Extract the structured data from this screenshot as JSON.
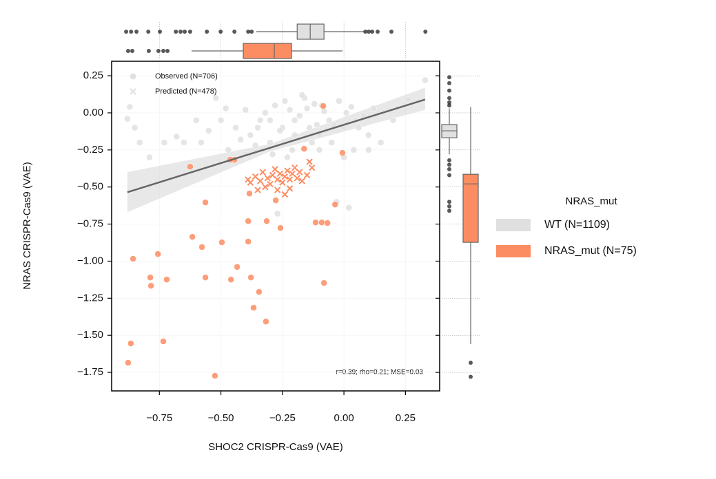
{
  "chart_data": {
    "type": "scatter",
    "xlabel": "SHOC2 CRISPR-Cas9 (VAE)",
    "ylabel": "NRAS CRISPR-Cas9 (VAE)",
    "xlim": [
      -0.944,
      0.389
    ],
    "ylim": [
      -1.875,
      0.348
    ],
    "xticks": [
      {
        "value": -0.75,
        "label": "−0.75"
      },
      {
        "value": -0.5,
        "label": "−0.50"
      },
      {
        "value": -0.25,
        "label": "−0.25"
      },
      {
        "value": 0,
        "label": "0.00"
      },
      0.25
    ],
    "yticks": [
      0.25,
      {
        "value": 0,
        "label": "0.00"
      },
      {
        "value": -0.25,
        "label": "−0.25"
      },
      {
        "value": -0.5,
        "label": "−0.50"
      },
      {
        "value": -0.75,
        "label": "−0.75"
      },
      {
        "value": -1,
        "label": "−1.00"
      },
      {
        "value": -1.25,
        "label": "−1.25"
      },
      {
        "value": -1.5,
        "label": "−1.50"
      },
      {
        "value": -1.75,
        "label": "−1.75"
      }
    ],
    "grid": true,
    "legend_title": "NRAS_mut",
    "hue_legend": [
      {
        "name": "WT (N=1109)",
        "color": "#e0e0e0"
      },
      {
        "name": "NRAS_mut (N=75)",
        "color": "#fc8d62"
      }
    ],
    "style_legend": [
      {
        "name": "Observed (N=706)",
        "marker": "circle"
      },
      {
        "name": "Predicted (N=478)",
        "marker": "x"
      }
    ],
    "annotation": "r=0.39; rho=0.21; MSE=0.03",
    "series": [
      {
        "hue": 0,
        "style": 0,
        "x": [
          -0.88,
          -0.87,
          -0.85,
          -0.83,
          -0.79,
          -0.73,
          -0.68,
          -0.65,
          -0.58,
          -0.55,
          -0.5,
          -0.48,
          -0.44,
          -0.4,
          -0.35,
          -0.3,
          -0.25,
          -0.2,
          -0.15,
          -0.1,
          -0.05,
          0.0,
          0.05,
          0.1,
          0.15,
          0.2,
          0.33,
          0.26,
          0.02,
          -0.03,
          -0.27,
          -0.4,
          -0.47,
          -0.1,
          -0.32,
          -0.28,
          -0.22,
          -0.18,
          -0.12,
          -0.08,
          -0.04,
          0.03,
          0.08,
          -0.34,
          -0.26,
          -0.2,
          -0.14,
          -0.06,
          0.01,
          -0.38,
          -0.3,
          -0.24,
          -0.16,
          -0.09,
          -0.02,
          0.06,
          0.12,
          -0.42,
          -0.36,
          -0.29,
          -0.21,
          -0.13,
          0.0,
          0.04,
          -0.11,
          -0.17,
          -0.23,
          0.1,
          -0.6,
          -0.52
        ],
        "y": [
          -0.04,
          0.04,
          -0.1,
          -0.2,
          -0.3,
          -0.2,
          -0.16,
          -0.2,
          -0.2,
          -0.12,
          -0.05,
          0.03,
          -0.1,
          0.02,
          -0.1,
          -0.2,
          -0.1,
          -0.05,
          0.03,
          -0.15,
          -0.2,
          -0.1,
          -0.05,
          -0.15,
          -0.2,
          -0.05,
          0.22,
          0.09,
          -0.64,
          -0.6,
          -0.68,
          -0.28,
          -0.25,
          -0.25,
          0.0,
          0.05,
          0.02,
          -0.02,
          0.06,
          0.01,
          -0.08,
          0.04,
          -0.02,
          -0.05,
          -0.12,
          -0.15,
          -0.1,
          -0.05,
          0.0,
          -0.15,
          -0.05,
          0.08,
          0.1,
          0.05,
          0.08,
          -0.1,
          0.03,
          -0.18,
          -0.22,
          -0.28,
          -0.25,
          -0.2,
          -0.3,
          -0.25,
          -0.08,
          0.12,
          -0.3,
          -0.25,
          -0.05,
          0.1
        ]
      },
      {
        "hue": 1,
        "style": 0,
        "x": [
          -0.084,
          -0.006,
          -0.162,
          -0.445,
          -0.462,
          -0.625,
          -0.384,
          -0.277,
          -0.563,
          -0.036,
          -0.389,
          -0.314,
          -0.258,
          -0.115,
          -0.09,
          -0.067,
          -0.616,
          -0.496,
          -0.577,
          -0.389,
          -0.857,
          -0.756,
          -0.434,
          -0.787,
          -0.72,
          -0.563,
          -0.459,
          -0.784,
          -0.378,
          -0.081,
          -0.345,
          -0.367,
          -0.317,
          -0.866,
          -0.734,
          -0.877,
          -0.524
        ],
        "y": [
          0.046,
          -0.27,
          -0.242,
          -0.316,
          -0.316,
          -0.363,
          -0.544,
          -0.59,
          -0.604,
          -0.618,
          -0.73,
          -0.73,
          -0.776,
          -0.739,
          -0.739,
          -0.743,
          -0.836,
          -0.873,
          -0.905,
          -0.868,
          -0.984,
          -0.952,
          -1.039,
          -1.11,
          -1.124,
          -1.11,
          -1.124,
          -1.166,
          -1.11,
          -1.147,
          -1.207,
          -1.314,
          -1.407,
          -1.555,
          -1.541,
          -1.685,
          -1.773
        ]
      },
      {
        "hue": 1,
        "style": 1,
        "x": [
          -0.36,
          -0.34,
          -0.33,
          -0.31,
          -0.3,
          -0.29,
          -0.28,
          -0.27,
          -0.26,
          -0.25,
          -0.24,
          -0.23,
          -0.22,
          -0.21,
          -0.2,
          -0.19,
          -0.18,
          -0.17,
          -0.15,
          -0.14,
          -0.13,
          -0.32,
          -0.27,
          -0.22,
          -0.35,
          -0.38,
          -0.39,
          -0.24
        ],
        "y": [
          -0.43,
          -0.46,
          -0.4,
          -0.44,
          -0.48,
          -0.42,
          -0.38,
          -0.45,
          -0.41,
          -0.47,
          -0.43,
          -0.39,
          -0.45,
          -0.41,
          -0.37,
          -0.44,
          -0.4,
          -0.46,
          -0.42,
          -0.33,
          -0.37,
          -0.5,
          -0.52,
          -0.51,
          -0.52,
          -0.47,
          -0.45,
          -0.55
        ]
      }
    ],
    "regression": {
      "x": [
        -0.88,
        0.33
      ],
      "y": [
        -0.535,
        0.09
      ],
      "color": "#666666"
    },
    "ci": {
      "x": [
        -0.88,
        -0.3,
        0.33
      ],
      "lower": [
        -0.67,
        -0.26,
        0.02
      ],
      "upper": [
        -0.4,
        -0.21,
        0.17
      ]
    },
    "marginal_x": [
      {
        "hue": 0,
        "whislo": -0.356,
        "q1": -0.19,
        "med": -0.137,
        "q3": -0.081,
        "whishi": 0.081,
        "fliers": [
          -0.885,
          -0.865,
          -0.843,
          -0.795,
          -0.748,
          -0.683,
          -0.664,
          -0.647,
          -0.625,
          -0.557,
          -0.501,
          -0.445,
          -0.389,
          -0.375,
          0.087,
          0.101,
          0.115,
          0.137,
          0.193,
          0.331
        ]
      },
      {
        "hue": 1,
        "whislo": -0.619,
        "q1": -0.409,
        "med": -0.283,
        "q3": -0.213,
        "whishi": -0.006,
        "fliers": [
          -0.877,
          -0.86,
          -0.793,
          -0.754,
          -0.734,
          -0.717
        ]
      }
    ],
    "marginal_y": [
      {
        "hue": 0,
        "whislo": -0.28,
        "q1": -0.168,
        "med": -0.121,
        "q3": -0.079,
        "whishi": 0.03,
        "fliers": [
          0.24,
          0.2,
          0.15,
          0.1,
          0.07,
          0.05,
          -0.32,
          -0.35,
          -0.38,
          -0.42,
          -0.6,
          -0.63,
          -0.66
        ]
      },
      {
        "hue": 1,
        "whislo": -1.56,
        "q1": -0.873,
        "med": -0.479,
        "q3": -0.414,
        "whishi": 0.041,
        "fliers": [
          -1.685,
          -1.78
        ]
      }
    ]
  }
}
